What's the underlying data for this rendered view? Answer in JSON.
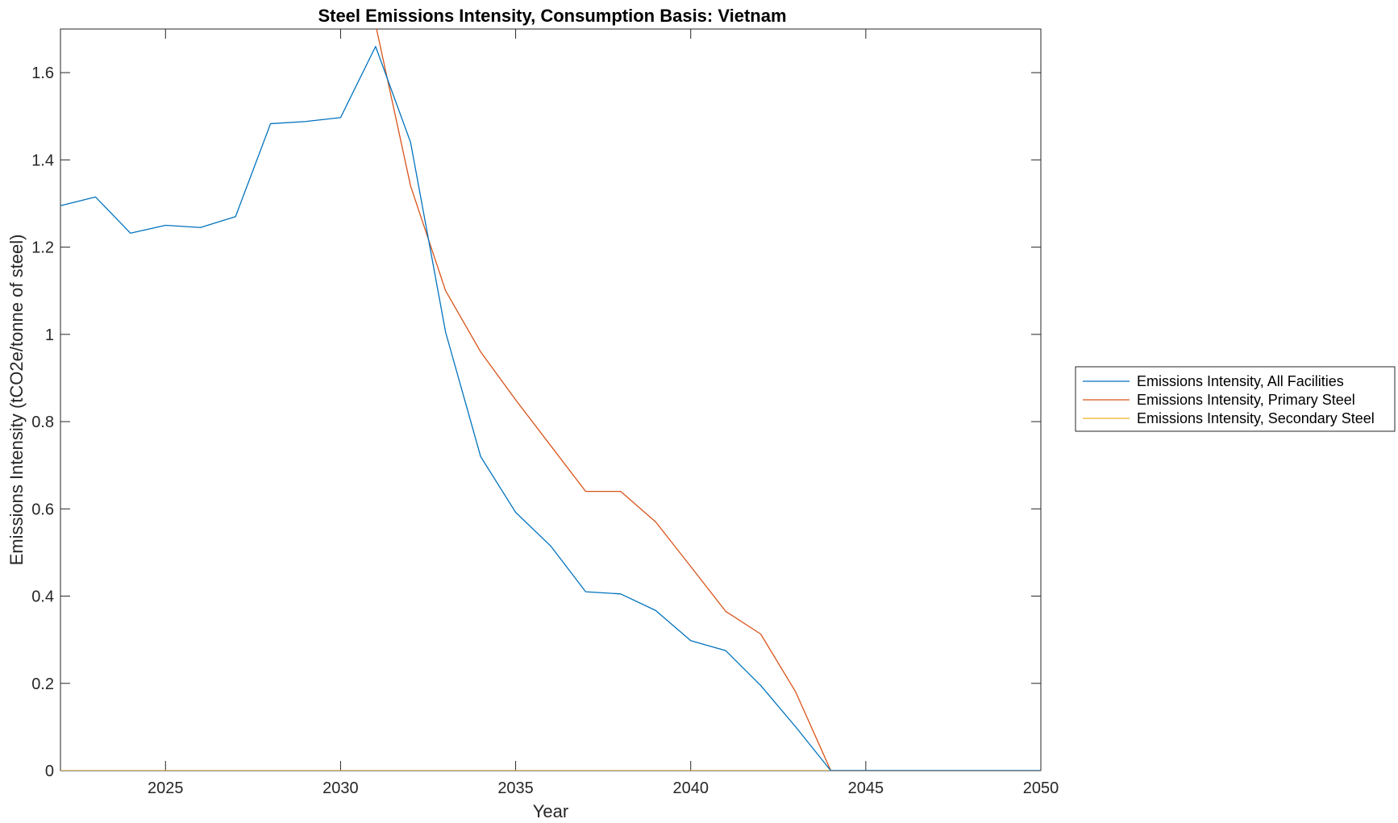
{
  "chart_data": {
    "type": "line",
    "title": "Steel Emissions Intensity, Consumption Basis: Vietnam",
    "xlabel": "Year",
    "ylabel": "Emissions Intensity (tCO2e/tonne of steel)",
    "xlim": [
      2022,
      2050
    ],
    "ylim": [
      0,
      1.7
    ],
    "xticks": [
      "2025",
      "2030",
      "2035",
      "2040",
      "2045",
      "2050"
    ],
    "yticks": [
      "0",
      "0.2",
      "0.4",
      "0.6",
      "0.8",
      "1",
      "1.2",
      "1.4",
      "1.6"
    ],
    "grid": false,
    "legend_position": "outside-right",
    "x": [
      2022,
      2023,
      2024,
      2025,
      2026,
      2027,
      2028,
      2029,
      2030,
      2031,
      2032,
      2033,
      2034,
      2035,
      2036,
      2037,
      2038,
      2039,
      2040,
      2041,
      2042,
      2043,
      2044,
      2045,
      2046,
      2047,
      2048,
      2049,
      2050
    ],
    "series": [
      {
        "name": "Emissions Intensity, All Facilities",
        "color": "#0072BD",
        "values": [
          1.295,
          1.315,
          1.232,
          1.25,
          1.245,
          1.27,
          1.483,
          1.488,
          1.497,
          1.66,
          1.44,
          1.005,
          0.72,
          0.592,
          0.515,
          0.41,
          0.405,
          0.367,
          0.298,
          0.275,
          0.195,
          0.1,
          0,
          0,
          0,
          0,
          0,
          0,
          0
        ]
      },
      {
        "name": "Emissions Intensity, Primary Steel",
        "color": "#D95319",
        "values": [
          1.71,
          1.71,
          1.71,
          1.71,
          1.71,
          1.71,
          1.71,
          1.71,
          1.71,
          1.71,
          1.34,
          1.1,
          0.96,
          0.85,
          0.745,
          0.64,
          0.64,
          0.57,
          0.468,
          0.365,
          0.313,
          0.18,
          0,
          0,
          0,
          0,
          0,
          0,
          0
        ]
      },
      {
        "name": "Emissions Intensity, Secondary Steel",
        "color": "#EDB120",
        "values": [
          0,
          0,
          0,
          0,
          0,
          0,
          0,
          0,
          0,
          0,
          0,
          0,
          0,
          0,
          0,
          0,
          0,
          0,
          0,
          0,
          0,
          0,
          0,
          0,
          0,
          0,
          0,
          0,
          0
        ]
      }
    ]
  }
}
